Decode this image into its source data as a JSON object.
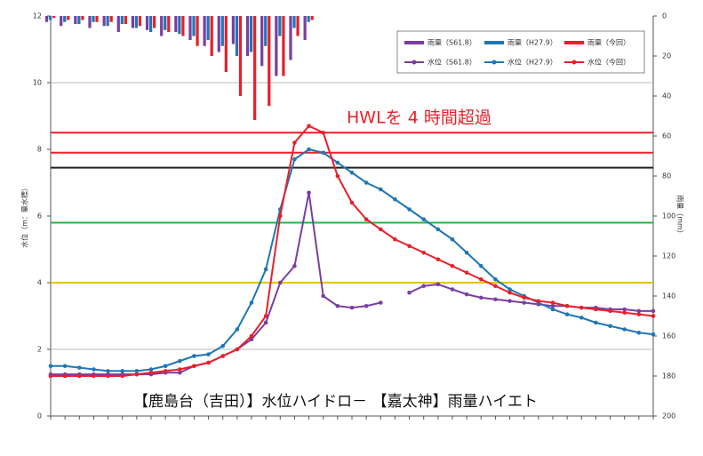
{
  "chart_data": {
    "type": "line",
    "ylabel": "水位（m：量水標）",
    "y2label": "雨量（mm）",
    "annotation": "HWLを 4 時間超過",
    "caption": "【鹿島台（吉田）】水位ハイドロ－ 【嘉太神】雨量ハイエト",
    "x": [
      0,
      2,
      4,
      6,
      8,
      10,
      12,
      14,
      16,
      18,
      20,
      22,
      24,
      26,
      28,
      30,
      32,
      34,
      36,
      38,
      40,
      42,
      44,
      46,
      48,
      50,
      52,
      54,
      56,
      58,
      60,
      62,
      64,
      66,
      68,
      70,
      72,
      74,
      76,
      78,
      80,
      82,
      84
    ],
    "xlim": [
      0,
      84
    ],
    "ylim": [
      0,
      12
    ],
    "yticks": [
      0,
      2,
      4,
      6,
      8,
      10,
      12
    ],
    "y2lim": [
      0,
      200
    ],
    "y2ticks": [
      0,
      20,
      40,
      60,
      80,
      100,
      120,
      140,
      160,
      180,
      200
    ],
    "y2_inverted": true,
    "reference_lines": [
      {
        "value": 10,
        "color": "#bbbbbb"
      },
      {
        "value": 2,
        "color": "#bbbbbb"
      },
      {
        "value": 8.5,
        "color": "#e8202a"
      },
      {
        "value": 7.9,
        "color": "#e8202a"
      },
      {
        "value": 7.45,
        "color": "#222222"
      },
      {
        "value": 5.8,
        "color": "#2bb34a"
      },
      {
        "value": 4.0,
        "color": "#e6c200"
      }
    ],
    "series": [
      {
        "name": "雨量（S61.8）",
        "type": "bar",
        "axis": "y2",
        "color": "#7a3fa0",
        "values": [
          3,
          5,
          4,
          6,
          5,
          8,
          6,
          7,
          10,
          8,
          12,
          15,
          18,
          14,
          20,
          25,
          30,
          22,
          12,
          null,
          null,
          null,
          null,
          null,
          null,
          null,
          null,
          null,
          null,
          null,
          null,
          null,
          null,
          null,
          null,
          null,
          null,
          null,
          null,
          null,
          null,
          null,
          null
        ]
      },
      {
        "name": "雨量（H27.9）",
        "type": "bar",
        "axis": "y2",
        "color": "#1f77b4",
        "values": [
          2,
          3,
          4,
          3,
          5,
          4,
          6,
          8,
          7,
          9,
          10,
          12,
          15,
          20,
          18,
          15,
          10,
          6,
          3,
          null,
          null,
          null,
          null,
          null,
          null,
          null,
          null,
          null,
          null,
          null,
          null,
          null,
          null,
          null,
          null,
          null,
          null,
          null,
          null,
          null,
          null,
          null,
          null
        ]
      },
      {
        "name": "雨量（今回）",
        "type": "bar",
        "axis": "y2",
        "color": "#e8202a",
        "values": [
          1,
          2,
          2,
          3,
          3,
          4,
          5,
          6,
          8,
          10,
          15,
          20,
          28,
          40,
          52,
          45,
          30,
          10,
          2,
          null,
          null,
          null,
          null,
          null,
          null,
          null,
          null,
          null,
          null,
          null,
          null,
          null,
          null,
          null,
          null,
          null,
          null,
          null,
          null,
          null,
          null,
          null,
          null
        ]
      },
      {
        "name": "水位（S61.8）",
        "type": "line",
        "color": "#7a3fa0",
        "values": [
          1.25,
          1.25,
          1.25,
          1.25,
          1.25,
          1.25,
          1.25,
          1.25,
          1.3,
          1.3,
          1.5,
          1.6,
          1.8,
          2.0,
          2.3,
          2.8,
          4.0,
          4.5,
          6.7,
          3.6,
          3.3,
          3.25,
          3.3,
          3.4,
          null,
          3.7,
          3.9,
          3.95,
          3.8,
          3.65,
          3.55,
          3.5,
          3.45,
          3.4,
          3.35,
          3.3,
          3.3,
          3.25,
          3.25,
          3.2,
          3.2,
          3.15,
          3.15
        ]
      },
      {
        "name": "水位（H27.9）",
        "type": "line",
        "color": "#1f77b4",
        "values": [
          1.5,
          1.5,
          1.45,
          1.4,
          1.35,
          1.35,
          1.35,
          1.4,
          1.5,
          1.65,
          1.8,
          1.85,
          2.1,
          2.6,
          3.4,
          4.4,
          6.2,
          7.7,
          8.0,
          7.9,
          7.6,
          7.3,
          7.0,
          6.8,
          6.5,
          6.2,
          5.9,
          5.6,
          5.3,
          4.9,
          4.5,
          4.1,
          3.8,
          3.6,
          3.4,
          3.2,
          3.05,
          2.95,
          2.8,
          2.7,
          2.6,
          2.5,
          2.45
        ]
      },
      {
        "name": "水位（今回）",
        "type": "line",
        "color": "#e8202a",
        "values": [
          1.2,
          1.2,
          1.2,
          1.2,
          1.2,
          1.2,
          1.25,
          1.3,
          1.35,
          1.4,
          1.5,
          1.6,
          1.8,
          2.0,
          2.4,
          3.0,
          6.0,
          8.2,
          8.7,
          8.5,
          7.2,
          6.4,
          5.9,
          5.6,
          5.3,
          5.1,
          4.9,
          4.7,
          4.5,
          4.3,
          4.1,
          3.9,
          3.7,
          3.55,
          3.45,
          3.4,
          3.3,
          3.25,
          3.2,
          3.15,
          3.1,
          3.05,
          3.0
        ]
      }
    ]
  }
}
